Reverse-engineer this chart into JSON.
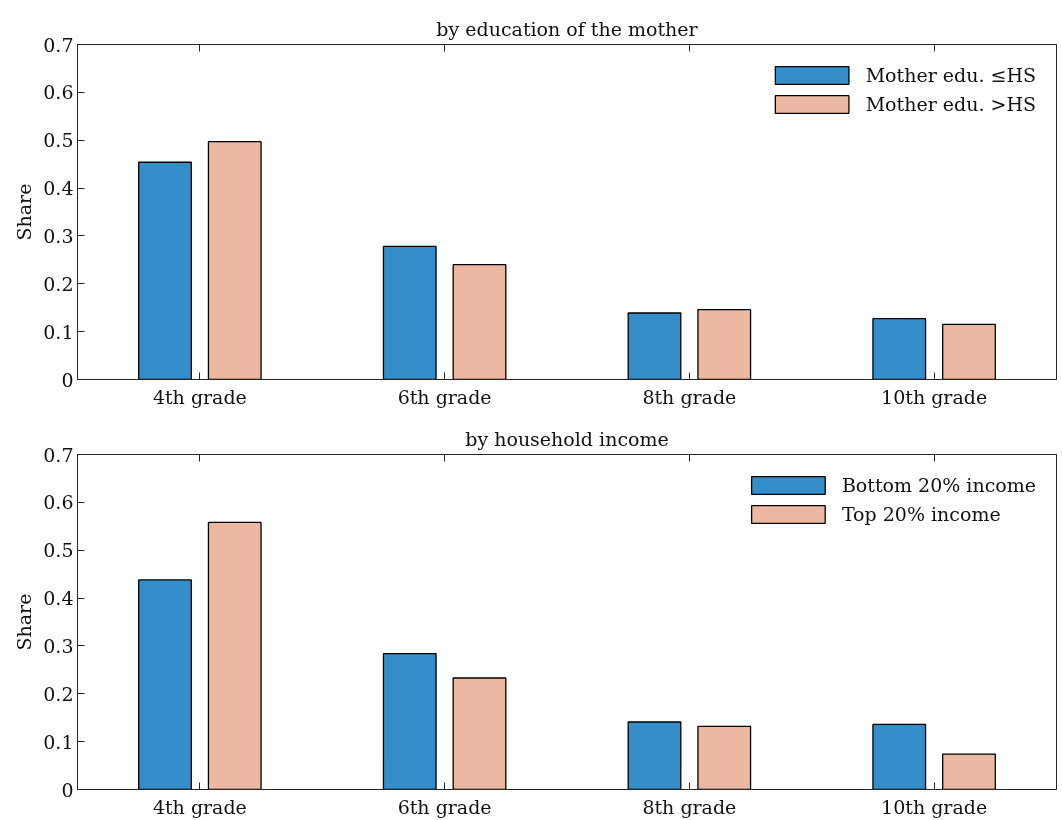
{
  "chart_data": [
    {
      "type": "bar",
      "title": "by education of the mother",
      "ylabel": "Share",
      "categories": [
        "4th grade",
        "6th grade",
        "8th grade",
        "10th grade"
      ],
      "series": [
        {
          "name": "Mother edu. ≤HS",
          "color": "#358dca",
          "values": [
            0.454,
            0.278,
            0.139,
            0.127
          ]
        },
        {
          "name": "Mother edu. >HS",
          "color": "#edb8a1",
          "values": [
            0.497,
            0.24,
            0.146,
            0.115
          ]
        }
      ],
      "ylim": [
        0,
        0.7
      ],
      "yticks": [
        0,
        0.1,
        0.2,
        0.3,
        0.4,
        0.5,
        0.6,
        0.7
      ],
      "legend": "top right"
    },
    {
      "type": "bar",
      "title": "by household income",
      "ylabel": "Share",
      "categories": [
        "4th grade",
        "6th grade",
        "8th grade",
        "10th grade"
      ],
      "series": [
        {
          "name": "Bottom 20% income",
          "color": "#358dca",
          "values": [
            0.438,
            0.284,
            0.141,
            0.136
          ]
        },
        {
          "name": "Top 20% income",
          "color": "#edb8a1",
          "values": [
            0.558,
            0.233,
            0.132,
            0.074
          ]
        }
      ],
      "ylim": [
        0,
        0.7
      ],
      "yticks": [
        0,
        0.1,
        0.2,
        0.3,
        0.4,
        0.5,
        0.6,
        0.7
      ],
      "legend": "top right"
    }
  ]
}
